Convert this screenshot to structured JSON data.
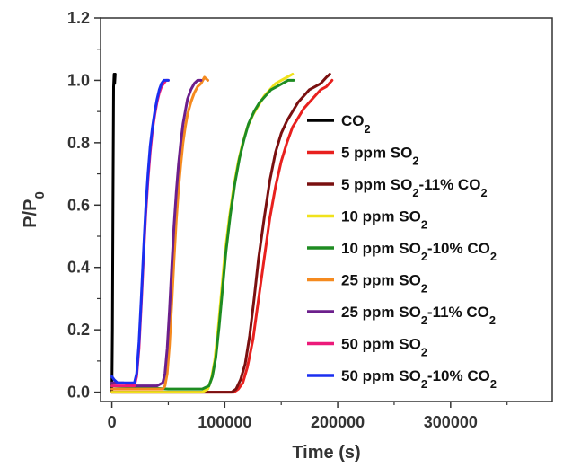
{
  "chart_data": {
    "type": "line",
    "xlabel": "Time (s)",
    "ylabel": "P/P0",
    "ylabel_parts": [
      {
        "t": "P/P",
        "sub": false
      },
      {
        "t": "0",
        "sub": true
      }
    ],
    "xlim": [
      -10000,
      390000
    ],
    "ylim": [
      -0.03,
      1.2
    ],
    "xticks": [
      0,
      100000,
      200000,
      300000
    ],
    "xtick_labels": [
      "0",
      "100000",
      "200000",
      "300000"
    ],
    "yticks": [
      0.0,
      0.2,
      0.4,
      0.6,
      0.8,
      1.0,
      1.2
    ],
    "ytick_labels": [
      "0.0",
      "0.2",
      "0.4",
      "0.6",
      "0.8",
      "1.0",
      "1.2"
    ],
    "grid": false,
    "legend_position": "right",
    "series": [
      {
        "name": "CO2",
        "label_parts": [
          {
            "t": "CO",
            "sub": false
          },
          {
            "t": "2",
            "sub": true
          }
        ],
        "color": "#000000",
        "x": [
          0,
          500,
          1000,
          1500,
          2000,
          2500,
          3000
        ],
        "y": [
          0.0,
          0.2,
          0.6,
          0.98,
          1.02,
          0.99,
          1.02
        ]
      },
      {
        "name": "5 ppm SO2",
        "label_parts": [
          {
            "t": "5 ppm SO",
            "sub": false
          },
          {
            "t": "2",
            "sub": true
          }
        ],
        "color": "#e8201e",
        "x": [
          0,
          60000,
          100000,
          108000,
          112000,
          116000,
          120000,
          125000,
          130000,
          135000,
          140000,
          145000,
          150000,
          155000,
          160000,
          165000,
          170000,
          175000,
          180000,
          185000,
          190000,
          195000
        ],
        "y": [
          0.0,
          0.0,
          0.0,
          0.0,
          0.01,
          0.03,
          0.08,
          0.17,
          0.3,
          0.43,
          0.56,
          0.66,
          0.74,
          0.8,
          0.85,
          0.88,
          0.91,
          0.93,
          0.95,
          0.97,
          0.98,
          1.0
        ]
      },
      {
        "name": "5 ppm SO2-11% CO2",
        "label_parts": [
          {
            "t": "5 ppm SO",
            "sub": false
          },
          {
            "t": "2",
            "sub": true
          },
          {
            "t": "-11% CO",
            "sub": false
          },
          {
            "t": "2",
            "sub": true
          }
        ],
        "color": "#7a1010",
        "x": [
          0,
          60000,
          100000,
          106000,
          110000,
          114000,
          118000,
          122000,
          126000,
          130000,
          135000,
          140000,
          145000,
          150000,
          155000,
          160000,
          165000,
          170000,
          175000,
          180000,
          185000,
          190000,
          193000
        ],
        "y": [
          0.0,
          0.0,
          0.0,
          0.0,
          0.01,
          0.04,
          0.09,
          0.18,
          0.3,
          0.43,
          0.56,
          0.68,
          0.77,
          0.83,
          0.87,
          0.9,
          0.93,
          0.95,
          0.97,
          0.98,
          0.99,
          1.01,
          1.02
        ]
      },
      {
        "name": "10 ppm SO2",
        "label_parts": [
          {
            "t": "10 ppm SO",
            "sub": false
          },
          {
            "t": "2",
            "sub": true
          }
        ],
        "color": "#f0e21c",
        "x": [
          0,
          50000,
          80000,
          85000,
          88000,
          91000,
          94000,
          97000,
          100000,
          104000,
          108000,
          112000,
          116000,
          120000,
          125000,
          130000,
          135000,
          140000,
          145000,
          150000,
          155000,
          160000
        ],
        "y": [
          0.0,
          0.0,
          0.0,
          0.01,
          0.04,
          0.1,
          0.2,
          0.32,
          0.44,
          0.56,
          0.66,
          0.74,
          0.8,
          0.85,
          0.89,
          0.92,
          0.95,
          0.97,
          0.99,
          1.0,
          1.01,
          1.02
        ]
      },
      {
        "name": "10 ppm SO2-10% CO2",
        "label_parts": [
          {
            "t": "10 ppm SO",
            "sub": false
          },
          {
            "t": "2",
            "sub": true
          },
          {
            "t": "-10% CO",
            "sub": false
          },
          {
            "t": "2",
            "sub": true
          }
        ],
        "color": "#1e8c22",
        "x": [
          0,
          50000,
          80000,
          86000,
          89000,
          92000,
          95000,
          98000,
          101000,
          105000,
          109000,
          113000,
          117000,
          121000,
          126000,
          131000,
          136000,
          141000,
          146000,
          151000,
          156000,
          161000
        ],
        "y": [
          0.02,
          0.01,
          0.01,
          0.02,
          0.05,
          0.11,
          0.21,
          0.33,
          0.45,
          0.57,
          0.67,
          0.75,
          0.81,
          0.86,
          0.9,
          0.93,
          0.95,
          0.97,
          0.98,
          0.99,
          1.0,
          1.0
        ]
      },
      {
        "name": "25 ppm SO2",
        "label_parts": [
          {
            "t": "25 ppm SO",
            "sub": false
          },
          {
            "t": "2",
            "sub": true
          }
        ],
        "color": "#f58a1f",
        "x": [
          0,
          30000,
          45000,
          47000,
          49000,
          51000,
          53000,
          55000,
          57000,
          59000,
          61000,
          63000,
          65000,
          67000,
          70000,
          73000,
          76000,
          79000,
          82000,
          85000
        ],
        "y": [
          0.01,
          0.01,
          0.01,
          0.02,
          0.06,
          0.15,
          0.28,
          0.42,
          0.55,
          0.65,
          0.73,
          0.8,
          0.85,
          0.89,
          0.93,
          0.96,
          0.98,
          0.99,
          1.01,
          1.0
        ]
      },
      {
        "name": "25 ppm SO2-11% CO2",
        "label_parts": [
          {
            "t": "25 ppm SO",
            "sub": false
          },
          {
            "t": "2",
            "sub": true
          },
          {
            "t": "-11% CO",
            "sub": false
          },
          {
            "t": "2",
            "sub": true
          }
        ],
        "color": "#6c1f8c",
        "x": [
          0,
          10000,
          20000,
          30000,
          40000,
          45000,
          47000,
          49000,
          51000,
          53000,
          55000,
          57000,
          59000,
          61000,
          63000,
          65000,
          67000,
          70000,
          73000,
          76000,
          79000
        ],
        "y": [
          0.03,
          0.03,
          0.02,
          0.02,
          0.02,
          0.03,
          0.06,
          0.14,
          0.26,
          0.4,
          0.53,
          0.64,
          0.73,
          0.8,
          0.86,
          0.9,
          0.94,
          0.97,
          0.99,
          1.0,
          1.0
        ]
      },
      {
        "name": "50 ppm SO2",
        "label_parts": [
          {
            "t": "50 ppm SO",
            "sub": false
          },
          {
            "t": "2",
            "sub": true
          }
        ],
        "color": "#ec1a7a",
        "x": [
          0,
          5000,
          10000,
          15000,
          20000,
          22000,
          24000,
          26000,
          28000,
          30000,
          32000,
          34000,
          36000,
          38000,
          40000,
          42000,
          44000,
          46000,
          48000,
          50000
        ],
        "y": [
          0.02,
          0.02,
          0.02,
          0.02,
          0.02,
          0.05,
          0.14,
          0.28,
          0.43,
          0.57,
          0.68,
          0.77,
          0.84,
          0.89,
          0.93,
          0.96,
          0.98,
          0.99,
          1.0,
          1.0
        ]
      },
      {
        "name": "50 ppm SO2-10% CO2",
        "label_parts": [
          {
            "t": "50 ppm SO",
            "sub": false
          },
          {
            "t": "2",
            "sub": true
          },
          {
            "t": "-10% CO",
            "sub": false
          },
          {
            "t": "2",
            "sub": true
          }
        ],
        "color": "#1a2ff0",
        "x": [
          0,
          2000,
          5000,
          10000,
          15000,
          20000,
          22000,
          24000,
          26000,
          28000,
          30000,
          32000,
          34000,
          36000,
          38000,
          40000,
          42000,
          44000,
          46000,
          48000,
          50000
        ],
        "y": [
          0.05,
          0.04,
          0.03,
          0.03,
          0.03,
          0.03,
          0.06,
          0.16,
          0.3,
          0.45,
          0.59,
          0.7,
          0.79,
          0.85,
          0.9,
          0.94,
          0.97,
          0.99,
          1.0,
          1.0,
          1.0
        ]
      }
    ]
  }
}
